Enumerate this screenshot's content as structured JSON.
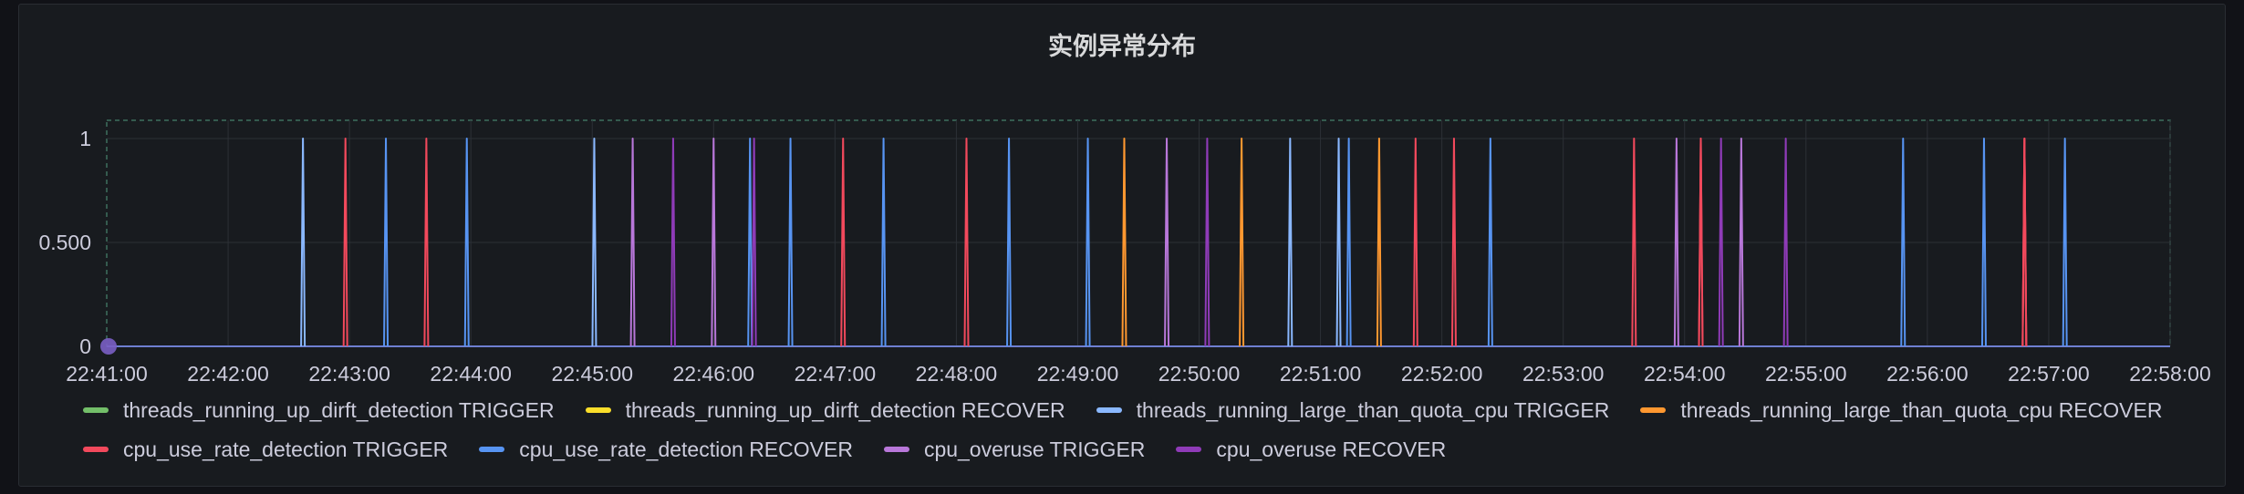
{
  "panel": {
    "title": "实例异常分布"
  },
  "chart_data": {
    "type": "line",
    "title": "实例异常分布",
    "x_start": "22:41:00",
    "x_end": "22:58:00",
    "x_ticks": [
      "22:41:00",
      "22:42:00",
      "22:43:00",
      "22:44:00",
      "22:45:00",
      "22:46:00",
      "22:47:00",
      "22:48:00",
      "22:49:00",
      "22:50:00",
      "22:51:00",
      "22:52:00",
      "22:53:00",
      "22:54:00",
      "22:55:00",
      "22:56:00",
      "22:57:00",
      "22:58:00"
    ],
    "y_ticks": [
      "0",
      "0.500",
      "1"
    ],
    "ylim": [
      0,
      1
    ],
    "grid": true,
    "legend_position": "bottom",
    "series": [
      {
        "name": "threads_running_up_dirft_detection TRIGGER",
        "color": "#73bf69",
        "spikes": []
      },
      {
        "name": "threads_running_up_dirft_detection RECOVER",
        "color": "#fade2a",
        "spikes": []
      },
      {
        "name": "threads_running_large_than_quota_cpu TRIGGER",
        "color": "#8ab8ff",
        "spikes": [
          "22:42:37",
          "22:45:01",
          "22:50:45",
          "22:51:09"
        ]
      },
      {
        "name": "threads_running_large_than_quota_cpu RECOVER",
        "color": "#ff9830",
        "spikes": [
          "22:49:23",
          "22:50:21",
          "22:51:29"
        ]
      },
      {
        "name": "cpu_use_rate_detection TRIGGER",
        "color": "#f2495c",
        "spikes": [
          "22:42:58",
          "22:43:38",
          "22:47:04",
          "22:48:05",
          "22:51:47",
          "22:52:06",
          "22:53:35",
          "22:54:08",
          "22:54:08",
          "22:56:48",
          "22:56:48",
          "22:56:48"
        ]
      },
      {
        "name": "cpu_use_rate_detection RECOVER",
        "color": "#5794f2",
        "spikes": [
          "22:43:18",
          "22:43:58",
          "22:46:18",
          "22:46:38",
          "22:47:24",
          "22:48:26",
          "22:49:05",
          "22:51:14",
          "22:52:24",
          "22:55:48",
          "22:56:28",
          "22:57:08"
        ]
      },
      {
        "name": "cpu_overuse TRIGGER",
        "color": "#b877d9",
        "spikes": [
          "22:45:20",
          "22:46:00",
          "22:49:44",
          "22:53:56",
          "22:54:28"
        ]
      },
      {
        "name": "cpu_overuse RECOVER",
        "color": "#8f3bb8",
        "spikes": [
          "22:45:40",
          "22:46:20",
          "22:50:04",
          "22:54:18",
          "22:54:50"
        ]
      }
    ]
  }
}
